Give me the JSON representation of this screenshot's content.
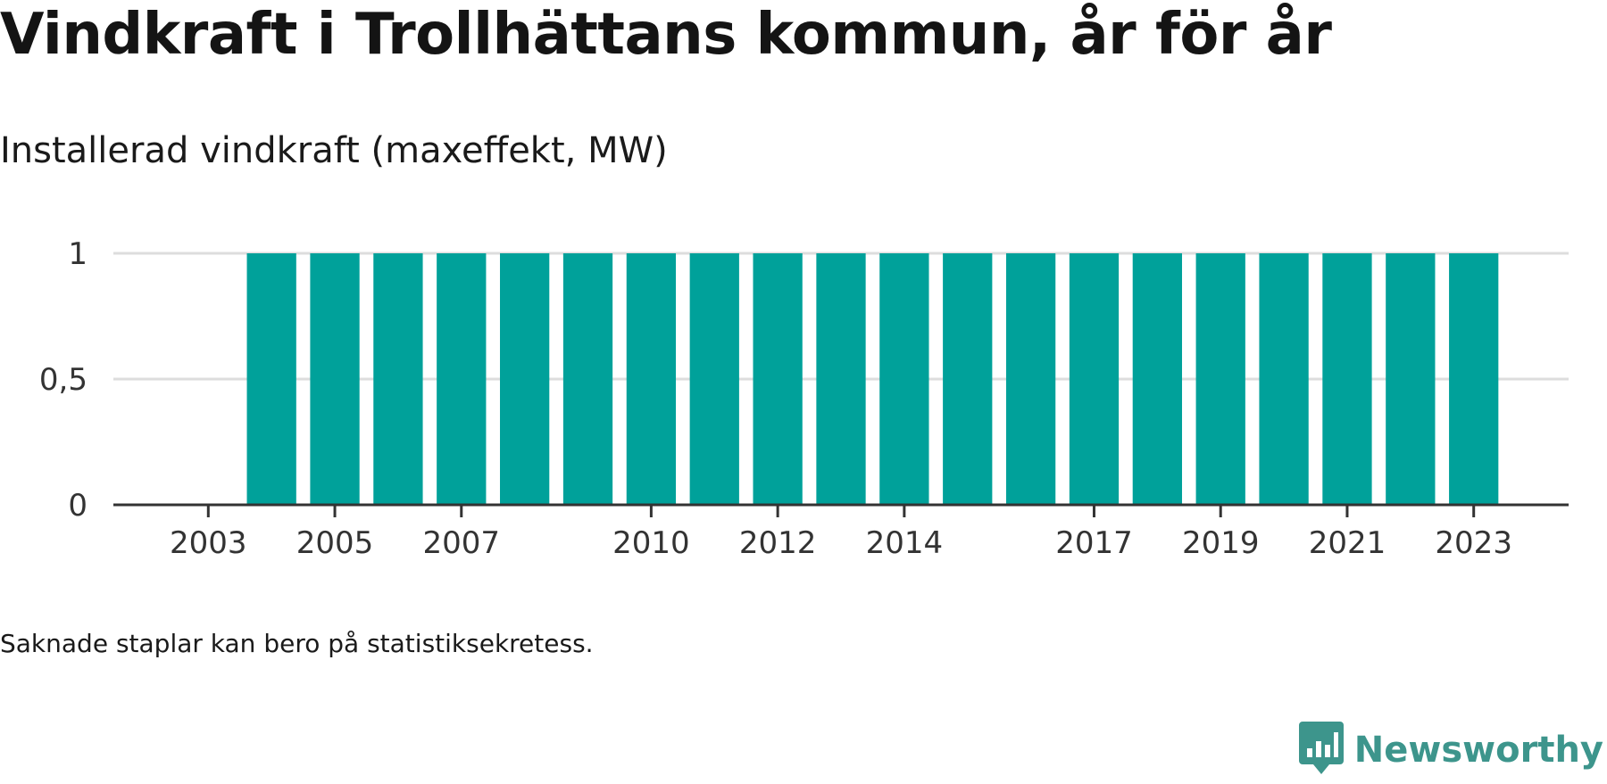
{
  "header": {
    "title": "Vindkraft i Trollhättans kommun, år för år",
    "subtitle": "Installerad vindkraft (maxeffekt, MW)"
  },
  "footer": {
    "note": "Saknade staplar kan bero på statistiksekretess.",
    "brand": "Newsworthy"
  },
  "colors": {
    "bar": "#00a19a",
    "grid": "#dddddd",
    "axis": "#333333",
    "brand": "#3d958c"
  },
  "icons": {
    "brand_logo": "bar-chart-speech-bubble-icon"
  },
  "chart_data": {
    "type": "bar",
    "title": "Vindkraft i Trollhättans kommun, år för år",
    "subtitle": "Installerad vindkraft (maxeffekt, MW)",
    "xlabel": "",
    "ylabel": "",
    "x": [
      2004,
      2005,
      2006,
      2007,
      2008,
      2009,
      2010,
      2011,
      2012,
      2013,
      2014,
      2015,
      2016,
      2017,
      2018,
      2019,
      2020,
      2021,
      2022,
      2023
    ],
    "values": [
      1,
      1,
      1,
      1,
      1,
      1,
      1,
      1,
      1,
      1,
      1,
      1,
      1,
      1,
      1,
      1,
      1,
      1,
      1,
      1
    ],
    "xlim": [
      2001.5,
      2024.5
    ],
    "ylim": [
      0,
      1
    ],
    "xticks": [
      2003,
      2005,
      2007,
      2010,
      2012,
      2014,
      2017,
      2019,
      2021,
      2023
    ],
    "yticks": [
      {
        "value": 0,
        "label": "0"
      },
      {
        "value": 0.5,
        "label": "0,5"
      },
      {
        "value": 1,
        "label": "1"
      }
    ],
    "grid": true,
    "legend": "none"
  }
}
